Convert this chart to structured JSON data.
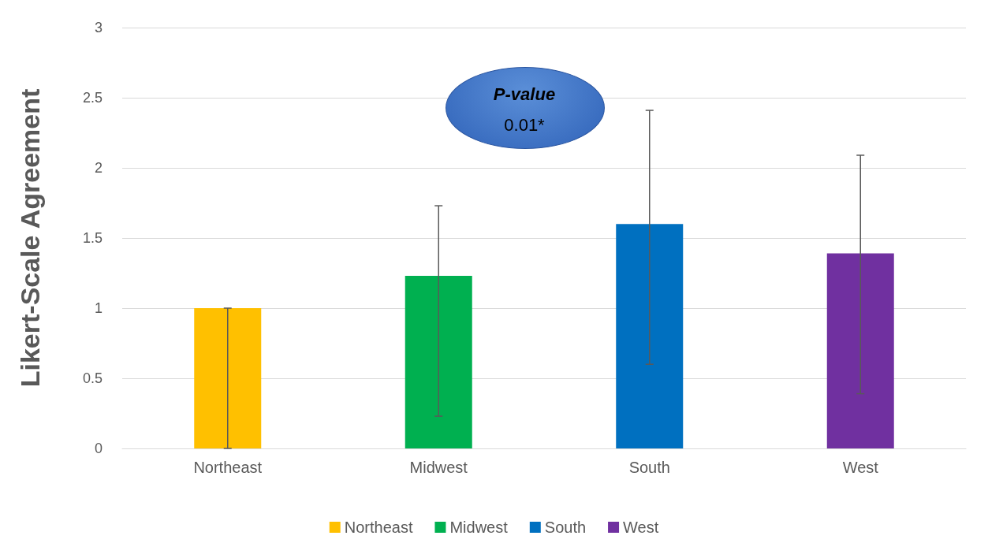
{
  "chart_data": {
    "type": "bar",
    "ylabel": "Likert-Scale Agreement",
    "categories": [
      "Northeast",
      "Midwest",
      "South",
      "West"
    ],
    "series": [
      {
        "name": "Northeast",
        "color": "#ffc000",
        "values": [
          1.0,
          null,
          null,
          null
        ],
        "errors": [
          [
            0,
            1.0
          ],
          null,
          null,
          null
        ]
      },
      {
        "name": "Midwest",
        "color": "#00b050",
        "values": [
          null,
          1.23,
          null,
          null
        ],
        "errors": [
          null,
          [
            0.23,
            1.73
          ],
          null,
          null
        ]
      },
      {
        "name": "South",
        "color": "#0070c0",
        "values": [
          null,
          null,
          1.6,
          null
        ],
        "errors": [
          null,
          null,
          [
            0.6,
            2.41
          ],
          null
        ]
      },
      {
        "name": "West",
        "color": "#7030a0",
        "values": [
          null,
          null,
          null,
          1.39
        ],
        "errors": [
          null,
          null,
          null,
          [
            0.39,
            2.09
          ]
        ]
      }
    ],
    "ylim": [
      0,
      3
    ],
    "yticks": [
      0,
      0.5,
      1,
      1.5,
      2,
      2.5,
      3
    ],
    "grid": "y",
    "legend": "bottom",
    "annotations": [
      "P-value",
      "0.01*"
    ]
  }
}
